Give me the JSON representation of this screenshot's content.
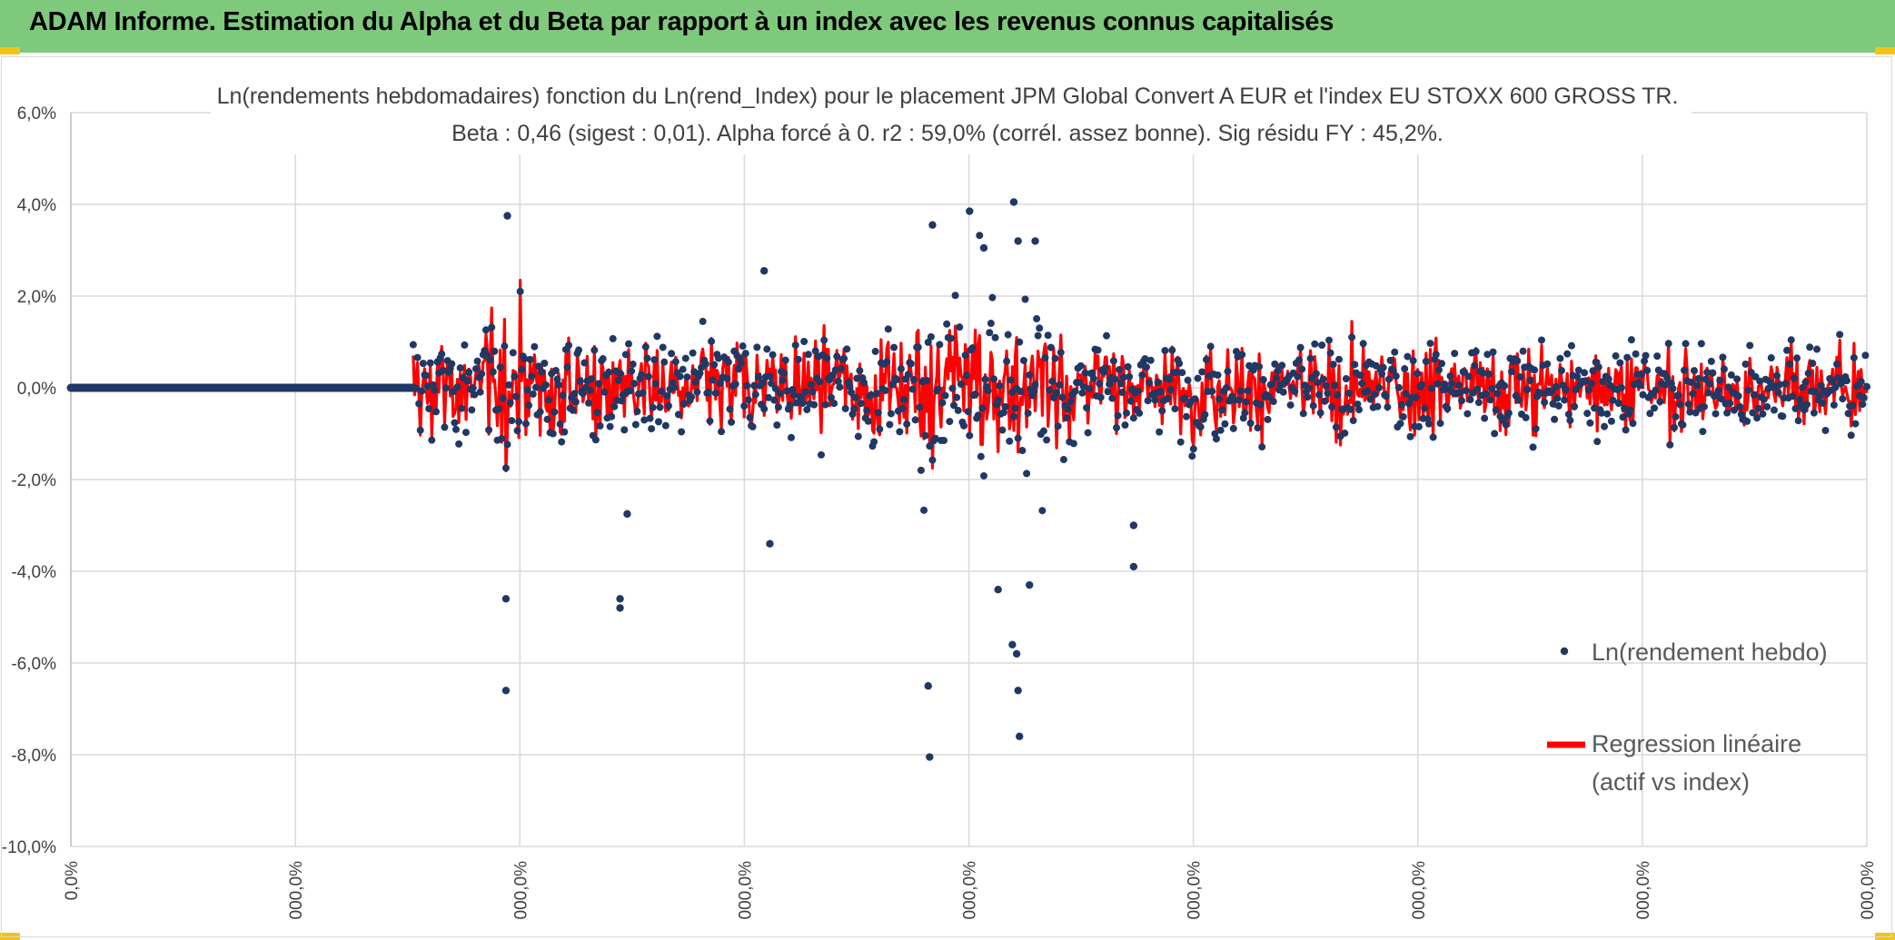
{
  "header": {
    "title": "ADAM Informe. Estimation du Alpha et du Beta par rapport à un index avec les revenus connus capitalisés",
    "background_color": "#7ec97c",
    "corner_color": "#f0c419"
  },
  "chart_data": {
    "type": "scatter",
    "title": "Ln(rendements hebdomadaires) fonction du Ln(rend_Index) pour le placement JPM Global Convert A EUR  et l'index EU STOXX 600 GROSS TR.",
    "subtitle": "Beta : 0,46 (sigest : 0,01). Alpha forcé à 0. r2 : 59,0% (corrél. assez bonne). Sig résidu FY : 45,2%.",
    "xlabel": "",
    "ylabel": "",
    "ylim": [
      -0.1,
      0.06
    ],
    "y_ticks": [
      "6,0%",
      "4,0%",
      "2,0%",
      "0,0%",
      "-2,0%",
      "-4,0%",
      "-6,0%",
      "-8,0%",
      "-10,0%"
    ],
    "x_ticks": [
      "0,0%",
      "000,0%",
      "000,0%",
      "000,0%",
      "000,0%",
      "000,0%",
      "000,0%",
      "000,0%",
      "000,0%"
    ],
    "grid": true,
    "legend_position": "bottom-right",
    "n_points": 1260,
    "flat_until": 240,
    "series": [
      {
        "name": "Ln(rendement hebdo)",
        "color": "#203864",
        "marker": "dot",
        "notable_points": [
          {
            "x": 305,
            "y": -0.066
          },
          {
            "x": 306,
            "y": 0.0375
          },
          {
            "x": 305,
            "y": -0.046
          },
          {
            "x": 385,
            "y": -0.048
          },
          {
            "x": 385,
            "y": -0.046
          },
          {
            "x": 390,
            "y": -0.0275
          },
          {
            "x": 486,
            "y": 0.0255
          },
          {
            "x": 490,
            "y": -0.034
          },
          {
            "x": 602,
            "y": -0.0805
          },
          {
            "x": 601,
            "y": -0.065
          },
          {
            "x": 604,
            "y": 0.0355
          },
          {
            "x": 630,
            "y": 0.0385
          },
          {
            "x": 640,
            "y": 0.0305
          },
          {
            "x": 661,
            "y": 0.0405
          },
          {
            "x": 664,
            "y": 0.032
          },
          {
            "x": 660,
            "y": -0.056
          },
          {
            "x": 663,
            "y": -0.058
          },
          {
            "x": 664,
            "y": -0.066
          },
          {
            "x": 665,
            "y": -0.076
          },
          {
            "x": 650,
            "y": -0.044
          },
          {
            "x": 672,
            "y": -0.043
          },
          {
            "x": 676,
            "y": 0.032
          },
          {
            "x": 745,
            "y": -0.039
          },
          {
            "x": 745,
            "y": -0.03
          }
        ]
      },
      {
        "name": "Regression linéaire (actif vs index)",
        "name_line1": "Regression linéaire",
        "name_line2": "(actif vs index)",
        "color": "#ff0000",
        "beta": 0.46
      }
    ]
  }
}
